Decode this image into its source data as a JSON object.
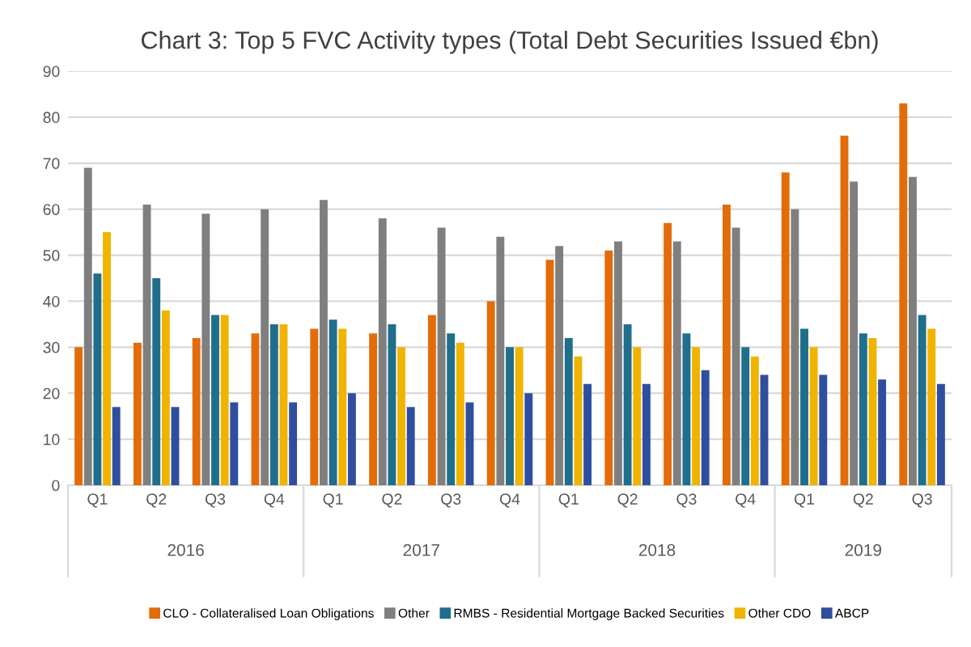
{
  "chart_data": {
    "type": "bar",
    "title": "Chart 3: Top 5 FVC Activity types (Total Debt Securities Issued €bn)",
    "categories": [
      "Q1",
      "Q2",
      "Q3",
      "Q4",
      "Q1",
      "Q2",
      "Q3",
      "Q4",
      "Q1",
      "Q2",
      "Q3",
      "Q4",
      "Q1",
      "Q2",
      "Q3"
    ],
    "annotations": [
      "2016",
      "2017",
      "2018",
      "2019"
    ],
    "series": [
      {
        "name": "CLO - Collateralised Loan Obligations",
        "color": "#e36c0a",
        "values": [
          30,
          31,
          32,
          33,
          34,
          33,
          37,
          40,
          49,
          51,
          57,
          61,
          68,
          76,
          83
        ]
      },
      {
        "name": "Other",
        "color": "#7f7f7f",
        "values": [
          69,
          61,
          59,
          60,
          62,
          58,
          56,
          54,
          52,
          53,
          53,
          56,
          60,
          66,
          67
        ]
      },
      {
        "name": "RMBS - Residential Mortgage Backed Securities",
        "color": "#1f6e8c",
        "values": [
          46,
          45,
          37,
          35,
          36,
          35,
          33,
          30,
          32,
          35,
          33,
          30,
          34,
          33,
          37
        ]
      },
      {
        "name": "Other CDO",
        "color": "#f0b400",
        "values": [
          55,
          38,
          37,
          35,
          34,
          30,
          31,
          30,
          28,
          30,
          30,
          28,
          30,
          32,
          34
        ]
      },
      {
        "name": "ABCP",
        "color": "#2f4ea0",
        "values": [
          17,
          17,
          18,
          18,
          20,
          17,
          18,
          20,
          22,
          22,
          25,
          24,
          24,
          23,
          22
        ]
      }
    ],
    "ylim": [
      0,
      90
    ],
    "yticks": [
      0,
      10,
      20,
      30,
      40,
      50,
      60,
      70,
      80,
      90
    ],
    "grid": "y",
    "legend": "bottom"
  }
}
